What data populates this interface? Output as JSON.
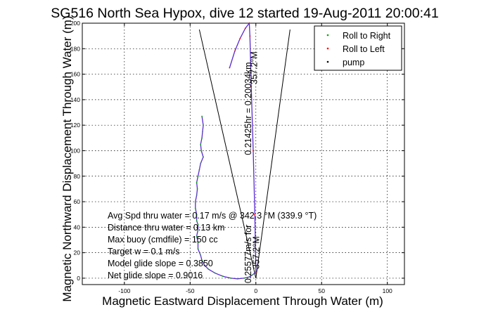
{
  "chart_data": {
    "type": "line",
    "title": "SG516 North Sea Hypox, dive 12 started 19-Aug-2011 20:00:41",
    "xlabel": "Magnetic Eastward Displacement Through Water (m)",
    "ylabel": "Magnetic Northward Displacement Through Water (m)",
    "xlim": [
      -132,
      113
    ],
    "ylim": [
      -5,
      200
    ],
    "xticks": [
      -100,
      -50,
      0,
      50,
      100
    ],
    "yticks": [
      0,
      20,
      40,
      60,
      80,
      100,
      120,
      140,
      160,
      180,
      200
    ],
    "grid": true,
    "legend_position": "top-right",
    "legend": [
      "Roll to Right",
      "Roll to Left",
      "pump"
    ],
    "series": [
      {
        "name": "Roll to Right",
        "color": "#00aa00",
        "x": [
          -41,
          -40,
          -40.5,
          -41,
          -42,
          -41.5,
          -40,
          -42,
          -43,
          -44,
          -45,
          -44.5,
          -45,
          -46,
          -46,
          -45,
          -45,
          -44,
          -44,
          -45,
          -44,
          -44,
          -42,
          -41,
          -39,
          -36,
          -31,
          -25,
          -19,
          -14,
          -9,
          -5,
          -2,
          0
        ],
        "y": [
          127,
          120,
          115,
          110,
          105,
          100,
          95,
          90,
          85,
          80,
          75,
          70,
          65,
          60,
          55,
          50,
          45,
          42,
          38,
          33,
          28,
          23,
          18,
          14,
          10,
          7,
          4,
          1.5,
          0,
          -0.5,
          0,
          1,
          3,
          5
        ]
      },
      {
        "name": "Roll to Left",
        "color": "#ff0000",
        "x": [
          0,
          -0.8,
          -2,
          -3.5,
          -4.5,
          -5,
          -8,
          -12,
          -16,
          -20
        ],
        "y": [
          5,
          50,
          100,
          150,
          190,
          200,
          196,
          188,
          178,
          165
        ]
      },
      {
        "name": "pump",
        "color": "#000000",
        "x": [],
        "y": []
      }
    ],
    "reference_lines": [
      {
        "x": [
          0,
          -43
        ],
        "y": [
          0,
          195
        ]
      },
      {
        "x": [
          0,
          26
        ],
        "y": [
          0,
          195
        ]
      }
    ],
    "annotations": [
      {
        "text": "Avg Spd thru water = 0.17 m/s @ 342.3   °M (339.9 °T)"
      },
      {
        "text": "Distance thru water = 0.13 km"
      },
      {
        "text": "Max buoy (cmdfile) = 150 cc"
      },
      {
        "text": "Target w = 0.1 m/s"
      },
      {
        "text": "Model glide slope = 0.3850"
      },
      {
        "text": "Net glide slope = 0.9016"
      },
      {
        "text": "0.21425hr = 0.20034km",
        "x": -3.5,
        "y": 133,
        "rotation": -90
      },
      {
        "text": "357.2°M",
        "x": 1,
        "y": 165,
        "rotation": -90
      },
      {
        "text": "0.25577m/s for",
        "x": -3.5,
        "y": 19,
        "rotation": -90
      },
      {
        "text": "357.2°M",
        "x": 2.5,
        "y": 20,
        "rotation": -90
      }
    ]
  }
}
